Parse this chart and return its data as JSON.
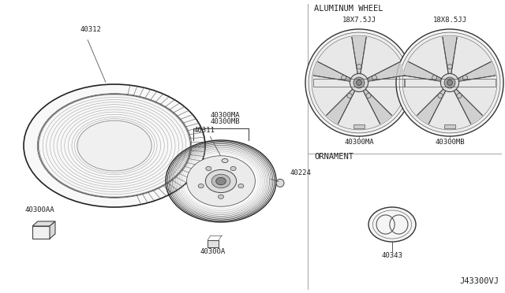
{
  "bg_color": "#ffffff",
  "diagram_code": "J43300VJ",
  "parts": {
    "tire_label": "40312",
    "wheel_label_ma": "40300MA",
    "wheel_label_mb": "40300MB",
    "wheel_bolt": "40311",
    "valve": "40224",
    "wheel_base": "40300A",
    "small_part": "40300AA",
    "ornament": "40343"
  },
  "aluminum_wheel": {
    "title": "ALUMINUM WHEEL",
    "wheel1_size": "18X7.5JJ",
    "wheel2_size": "18X8.5JJ",
    "wheel1_label": "40300MA",
    "wheel2_label": "40300MB"
  },
  "ornament_section": {
    "title": "ORNAMENT",
    "label": "40343"
  },
  "font_family": "monospace",
  "label_fontsize": 6.5,
  "section_fontsize": 7.5,
  "line_color": "#333333",
  "light_line": "#888888"
}
